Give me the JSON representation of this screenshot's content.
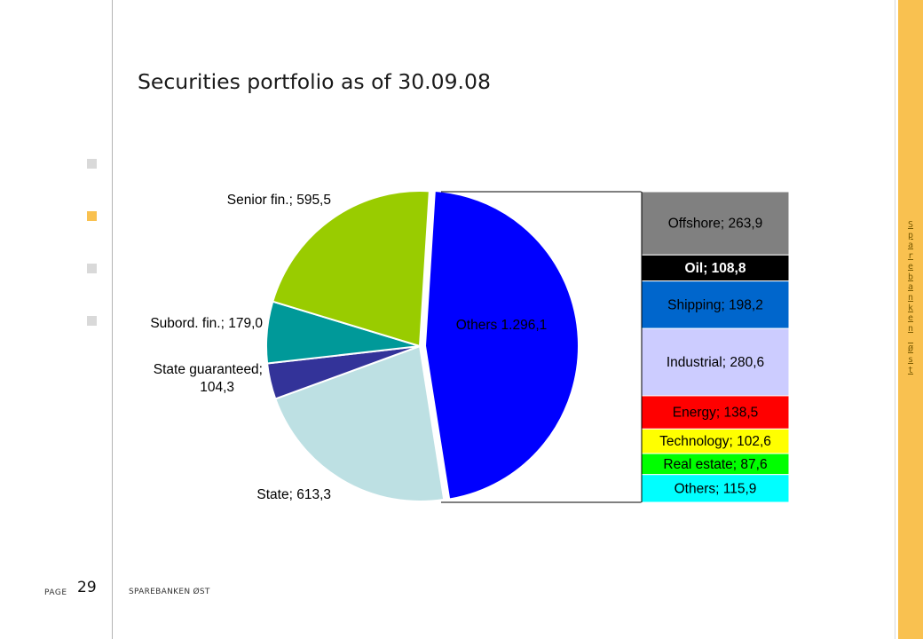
{
  "header": {
    "title": "Securities portfolio as of 30.09.08"
  },
  "footer": {
    "page_label": "PAGE",
    "page_number": "29",
    "brand": "SPAREBANKEN ØST"
  },
  "sidebar": {
    "brand_vertical": "Sparebanken Øst",
    "bullets": [
      false,
      true,
      false,
      false
    ]
  },
  "colors": {
    "accent": "#f9c150",
    "bullet": "#d9d9d9"
  },
  "chart_data": [
    {
      "type": "pie",
      "slices": [
        {
          "label": "Others",
          "value": 1296.1,
          "display": "Others 1.296,1",
          "color": "#0000ff",
          "exploded": true
        },
        {
          "label": "State",
          "value": 613.3,
          "display": "State; 613,3",
          "color": "#bde0e3"
        },
        {
          "label": "State guaranteed",
          "value": 104.3,
          "display_lines": [
            "State guaranteed;",
            "104,3"
          ],
          "color": "#333399"
        },
        {
          "label": "Subord. fin.",
          "value": 179.0,
          "display": "Subord. fin.; 179,0",
          "color": "#009999"
        },
        {
          "label": "Senior fin.",
          "value": 595.5,
          "display": "Senior fin.; 595,5",
          "color": "#99cc00"
        }
      ]
    },
    {
      "type": "bar",
      "stacked": true,
      "breakdown_of": "Others",
      "segments": [
        {
          "label": "Offshore",
          "value": 263.9,
          "display": "Offshore; 263,9",
          "color": "#808080",
          "text_color": "#000000"
        },
        {
          "label": "Oil",
          "value": 108.8,
          "display": "Oil; 108,8",
          "color": "#000000",
          "text_color": "#ffffff"
        },
        {
          "label": "Shipping",
          "value": 198.2,
          "display": "Shipping; 198,2",
          "color": "#0066cc",
          "text_color": "#000000"
        },
        {
          "label": "Industrial",
          "value": 280.6,
          "display": "Industrial; 280,6",
          "color": "#ccccff",
          "text_color": "#000000"
        },
        {
          "label": "Energy",
          "value": 138.5,
          "display": "Energy; 138,5",
          "color": "#ff0000",
          "text_color": "#000000"
        },
        {
          "label": "Technology",
          "value": 102.6,
          "display": "Technology; 102,6",
          "color": "#ffff00",
          "text_color": "#000000"
        },
        {
          "label": "Real estate",
          "value": 87.6,
          "display": "Real estate; 87,6",
          "color": "#00ff00",
          "text_color": "#000000"
        },
        {
          "label": "Others",
          "value": 115.9,
          "display": "Others; 115,9",
          "color": "#00ffff",
          "text_color": "#000000"
        }
      ]
    }
  ]
}
